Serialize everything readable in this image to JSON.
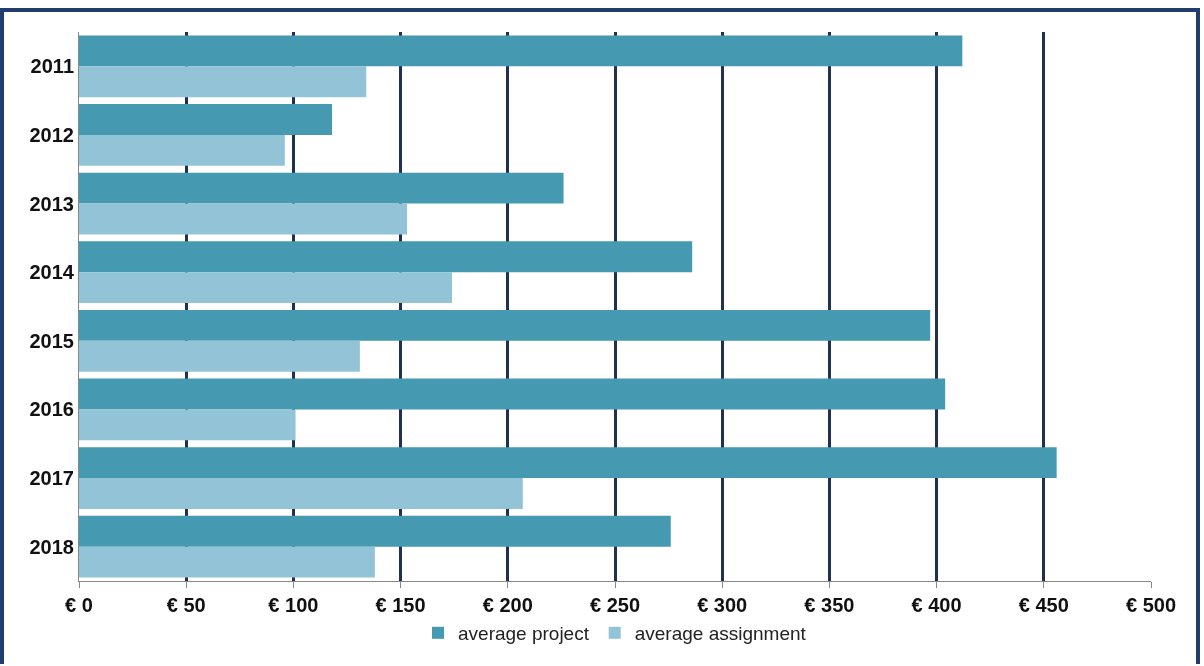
{
  "chart_data": {
    "type": "bar",
    "orientation": "horizontal",
    "categories": [
      "2011",
      "2012",
      "2013",
      "2014",
      "2015",
      "2016",
      "2017",
      "2018"
    ],
    "series": [
      {
        "name": "average project",
        "color": "#4599b0",
        "values": [
          412,
          118,
          226,
          286,
          397,
          404,
          456,
          276
        ]
      },
      {
        "name": "average assignment",
        "color": "#92c3d6",
        "values": [
          134,
          96,
          153,
          174,
          131,
          101,
          207,
          138
        ]
      }
    ],
    "xlim": [
      0,
      500
    ],
    "xticks": [
      {
        "value": 0,
        "label": "€ 0"
      },
      {
        "value": 50,
        "label": "€ 50"
      },
      {
        "value": 100,
        "label": "€ 100"
      },
      {
        "value": 150,
        "label": "€ 150"
      },
      {
        "value": 200,
        "label": "€ 200"
      },
      {
        "value": 250,
        "label": "€ 250"
      },
      {
        "value": 300,
        "label": "€ 300"
      },
      {
        "value": 350,
        "label": "€ 350"
      },
      {
        "value": 400,
        "label": "€ 400"
      },
      {
        "value": 450,
        "label": "€ 450"
      },
      {
        "value": 500,
        "label": "€ 500"
      }
    ],
    "grid": "x",
    "legend": "bottom"
  }
}
